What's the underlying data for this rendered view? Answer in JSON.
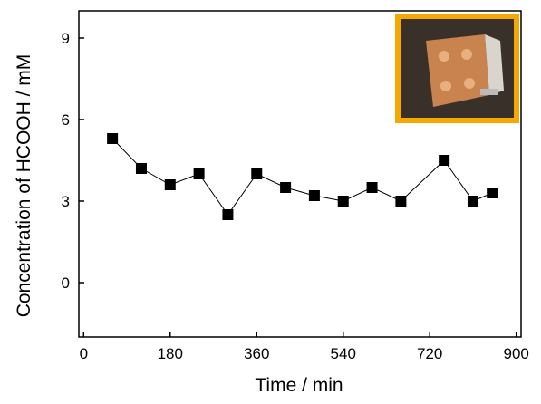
{
  "chart_data": {
    "type": "line",
    "x_label": "Time / min",
    "y_label": "Concentration of HCOOH / mM",
    "x": [
      60,
      120,
      180,
      240,
      300,
      360,
      420,
      480,
      540,
      600,
      660,
      750,
      810,
      850
    ],
    "series": [
      {
        "color": "#000000",
        "values": [
          5.3,
          4.2,
          3.6,
          4.0,
          2.5,
          4.0,
          3.5,
          3.2,
          3.0,
          3.5,
          3.0,
          4.5,
          3.0,
          3.3
        ]
      }
    ],
    "xlim": [
      -10,
      910
    ],
    "xticks": [
      0,
      180,
      360,
      540,
      720,
      900
    ],
    "ylim": [
      -2,
      10
    ],
    "yticks": [
      0,
      3,
      6,
      9
    ]
  }
}
